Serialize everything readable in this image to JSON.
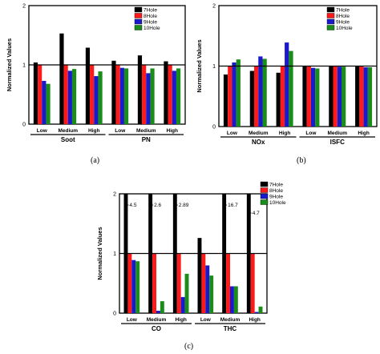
{
  "colors": {
    "7Hole": "#000000",
    "8Hole": "#ff1a1a",
    "9Hole": "#1a1acc",
    "10Hole": "#1a8c1a"
  },
  "captions": {
    "a": "(a)",
    "b": "(b)",
    "c": "(c)"
  },
  "chart_data": [
    {
      "panel": "a",
      "type": "bar",
      "ylabel": "Normalized Values",
      "ylim": [
        0,
        2
      ],
      "yticks": [
        "0",
        "1",
        "2"
      ],
      "legend_position": "top-right",
      "series_names": [
        "7Hole",
        "8Hole",
        "9Hole",
        "10Hole"
      ],
      "groups": [
        {
          "name": "Soot",
          "categories": [
            "Low",
            "Medium",
            "High"
          ],
          "values": [
            [
              1.04,
              1.0,
              0.73,
              0.68
            ],
            [
              1.53,
              1.0,
              0.9,
              0.93
            ],
            [
              1.29,
              1.0,
              0.81,
              0.89
            ]
          ]
        },
        {
          "name": "PN",
          "categories": [
            "Low",
            "Medium",
            "High"
          ],
          "values": [
            [
              1.07,
              1.0,
              0.95,
              0.94
            ],
            [
              1.16,
              1.0,
              0.86,
              0.94
            ],
            [
              1.06,
              1.0,
              0.9,
              0.94
            ]
          ]
        }
      ]
    },
    {
      "panel": "b",
      "type": "bar",
      "ylabel": "Normalized Values",
      "ylim": [
        0,
        2
      ],
      "yticks": [
        "0",
        "1",
        "2"
      ],
      "legend_position": "top-right",
      "series_names": [
        "7Hole",
        "8Hole",
        "9Hole",
        "10Hole"
      ],
      "groups": [
        {
          "name": "NOx",
          "categories": [
            "Low",
            "Medium",
            "High"
          ],
          "values": [
            [
              0.86,
              1.0,
              1.06,
              1.11
            ],
            [
              0.92,
              1.0,
              1.16,
              1.12
            ],
            [
              0.89,
              1.0,
              1.39,
              1.25
            ]
          ]
        },
        {
          "name": "ISFC",
          "categories": [
            "Low",
            "Medium",
            "High"
          ],
          "values": [
            [
              1.0,
              1.0,
              0.97,
              0.96
            ],
            [
              1.0,
              1.0,
              0.99,
              0.99
            ],
            [
              1.0,
              1.0,
              0.98,
              0.98
            ]
          ]
        }
      ]
    },
    {
      "panel": "c",
      "type": "bar",
      "ylabel": "Normalized Values",
      "ylim": [
        0,
        2
      ],
      "yticks": [
        "0",
        "1",
        "2"
      ],
      "legend_position": "top-right",
      "series_names": [
        "7Hole",
        "8Hole",
        "9Hole",
        "10Hole"
      ],
      "groups": [
        {
          "name": "CO",
          "categories": [
            "Low",
            "Medium",
            "High"
          ],
          "values": [
            [
              4.5,
              1.0,
              0.89,
              0.87
            ],
            [
              2.6,
              1.0,
              0.04,
              0.2
            ],
            [
              2.89,
              1.0,
              0.27,
              0.66
            ]
          ],
          "annotations": [
            "4.5",
            "2.6",
            "2.89"
          ]
        },
        {
          "name": "THC",
          "categories": [
            "Low",
            "Medium",
            "High"
          ],
          "values": [
            [
              1.26,
              1.0,
              0.8,
              0.63
            ],
            [
              16.7,
              1.0,
              0.45,
              0.45
            ],
            [
              4.7,
              1.0,
              0.02,
              0.11
            ]
          ],
          "annotations": [
            "",
            "16.7",
            "4.7"
          ]
        }
      ]
    }
  ]
}
